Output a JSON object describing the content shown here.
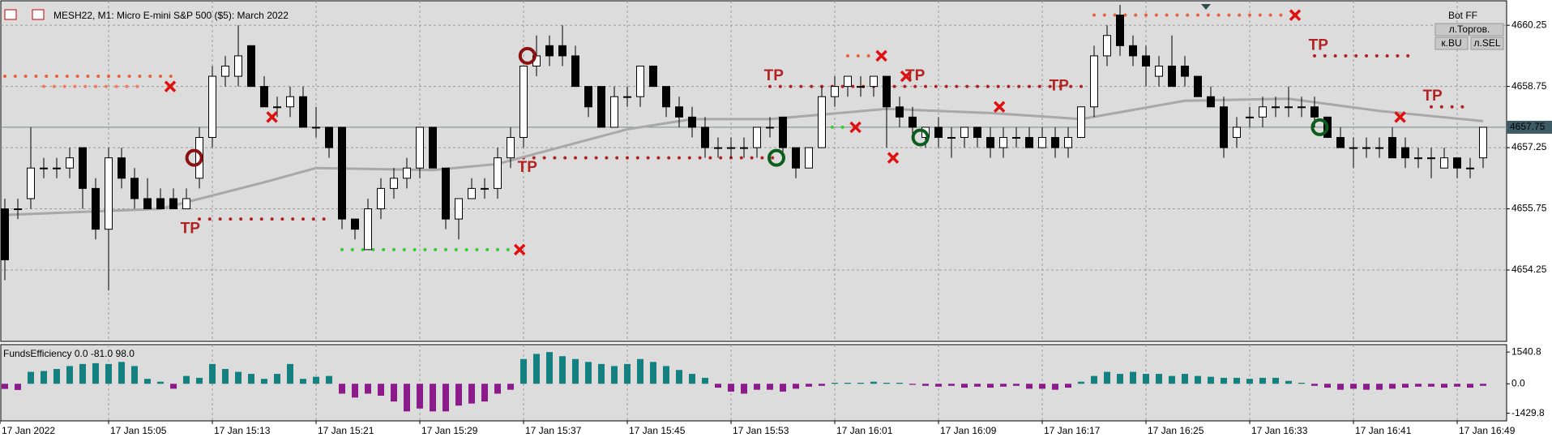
{
  "header": {
    "symbol": "MESH22, M1:  Micro E-mini S&P 500 ($5): March 2022",
    "bot": "Bot FF",
    "buttons": [
      "л.Торгов.",
      "к.BU",
      "л.SEL"
    ]
  },
  "chart_data": [
    {
      "type": "candlestick",
      "categories": [
        "17 Jan 2022",
        null,
        null,
        null,
        null,
        null,
        null,
        null,
        "17 Jan 15:05",
        null,
        null,
        null,
        null,
        null,
        null,
        null,
        "17 Jan 15:13",
        null,
        null,
        null,
        null,
        null,
        null,
        null,
        "17 Jan 15:21",
        null,
        null,
        null,
        null,
        null,
        null,
        null,
        "17 Jan 15:29",
        null,
        null,
        null,
        null,
        null,
        null,
        null,
        "17 Jan 15:37",
        null,
        null,
        null,
        null,
        null,
        null,
        null,
        "17 Jan 15:45",
        null,
        null,
        null,
        null,
        null,
        null,
        null,
        "17 Jan 15:53",
        null,
        null,
        null,
        null,
        null,
        null,
        null,
        "17 Jan 16:01",
        null,
        null,
        null,
        null,
        null,
        null,
        null,
        "17 Jan 16:09",
        null,
        null,
        null,
        null,
        null,
        null,
        null,
        "17 Jan 16:17",
        null,
        null,
        null,
        null,
        null,
        null,
        null,
        "17 Jan 16:25",
        null,
        null,
        null,
        null,
        null,
        null,
        null,
        "17 Jan 16:33",
        null,
        null,
        null,
        null,
        null,
        null,
        null,
        "17 Jan 16:41",
        null,
        null,
        null,
        null,
        null,
        null,
        null,
        "17 Jan 16:49",
        null,
        null
      ],
      "ohlc": [
        [
          4655.75,
          4656.0,
          4654.0,
          4654.5
        ],
        [
          4655.75,
          4656.0,
          4655.5,
          4655.75
        ],
        [
          4656.0,
          4657.75,
          4655.75,
          4656.75
        ],
        [
          4656.75,
          4657.0,
          4656.5,
          4656.75
        ],
        [
          4656.75,
          4657.0,
          4656.5,
          4656.75
        ],
        [
          4656.75,
          4657.25,
          4656.5,
          4657.0
        ],
        [
          4657.25,
          4657.25,
          4655.75,
          4656.25
        ],
        [
          4656.25,
          4656.5,
          4655.0,
          4655.25
        ],
        [
          4655.25,
          4657.25,
          4653.75,
          4657.0
        ],
        [
          4657.0,
          4657.25,
          4656.25,
          4656.5
        ],
        [
          4656.5,
          4656.75,
          4655.75,
          4656.0
        ],
        [
          4656.0,
          4656.5,
          4655.75,
          4655.75
        ],
        [
          4656.0,
          4656.25,
          4655.75,
          4655.75
        ],
        [
          4656.0,
          4656.25,
          4655.75,
          4655.75
        ],
        [
          4655.75,
          4656.25,
          4655.75,
          4656.0
        ],
        [
          4656.5,
          4657.75,
          4656.25,
          4657.5
        ],
        [
          4657.5,
          4659.25,
          4657.25,
          4659.0
        ],
        [
          4659.0,
          4659.5,
          4658.75,
          4659.25
        ],
        [
          4659.0,
          4660.25,
          4658.75,
          4659.5
        ],
        [
          4659.75,
          4659.75,
          4658.75,
          4658.75
        ],
        [
          4658.75,
          4659.0,
          4658.25,
          4658.25
        ],
        [
          4658.25,
          4658.5,
          4658.0,
          4658.25
        ],
        [
          4658.25,
          4658.75,
          4658.0,
          4658.5
        ],
        [
          4658.5,
          4658.75,
          4657.75,
          4657.75
        ],
        [
          4657.75,
          4658.25,
          4657.5,
          4657.75
        ],
        [
          4657.75,
          4657.75,
          4657.0,
          4657.25
        ],
        [
          4657.75,
          4657.75,
          4655.25,
          4655.5
        ],
        [
          4655.5,
          4655.5,
          4655.0,
          4655.25
        ],
        [
          4654.75,
          4656.0,
          4654.75,
          4655.75
        ],
        [
          4655.75,
          4656.5,
          4655.5,
          4656.25
        ],
        [
          4656.25,
          4656.75,
          4656.0,
          4656.5
        ],
        [
          4656.5,
          4657.0,
          4656.25,
          4656.75
        ],
        [
          4656.75,
          4657.75,
          4656.5,
          4657.75
        ],
        [
          4657.75,
          4657.75,
          4656.75,
          4656.75
        ],
        [
          4656.75,
          4656.75,
          4655.25,
          4655.5
        ],
        [
          4655.5,
          4656.0,
          4655.0,
          4656.0
        ],
        [
          4656.0,
          4656.5,
          4656.0,
          4656.25
        ],
        [
          4656.25,
          4656.5,
          4656.0,
          4656.25
        ],
        [
          4656.25,
          4657.25,
          4656.0,
          4657.0
        ],
        [
          4657.0,
          4657.75,
          4656.75,
          4657.5
        ],
        [
          4657.5,
          4659.25,
          4657.25,
          4659.25
        ],
        [
          4659.25,
          4660.0,
          4659.0,
          4659.5
        ],
        [
          4659.75,
          4660.0,
          4659.25,
          4659.5
        ],
        [
          4659.75,
          4660.25,
          4659.25,
          4659.5
        ],
        [
          4659.5,
          4659.75,
          4658.75,
          4658.75
        ],
        [
          4658.75,
          4658.75,
          4658.0,
          4658.25
        ],
        [
          4658.75,
          4658.75,
          4657.75,
          4657.75
        ],
        [
          4657.75,
          4658.75,
          4657.75,
          4658.5
        ],
        [
          4658.5,
          4658.75,
          4658.25,
          4658.5
        ],
        [
          4658.5,
          4659.25,
          4658.25,
          4659.25
        ],
        [
          4659.25,
          4659.25,
          4658.75,
          4658.75
        ],
        [
          4658.75,
          4658.75,
          4658.0,
          4658.25
        ],
        [
          4658.25,
          4658.5,
          4657.75,
          4658.0
        ],
        [
          4658.0,
          4658.25,
          4657.5,
          4657.75
        ],
        [
          4657.75,
          4658.0,
          4657.0,
          4657.25
        ],
        [
          4657.25,
          4657.5,
          4657.0,
          4657.25
        ],
        [
          4657.25,
          4657.5,
          4657.0,
          4657.25
        ],
        [
          4657.25,
          4657.5,
          4657.0,
          4657.25
        ],
        [
          4657.25,
          4657.75,
          4657.0,
          4657.75
        ],
        [
          4657.75,
          4658.0,
          4657.5,
          4657.75
        ],
        [
          4658.0,
          4658.0,
          4657.0,
          4657.25
        ],
        [
          4657.25,
          4657.25,
          4656.5,
          4656.75
        ],
        [
          4656.75,
          4657.25,
          4656.75,
          4657.25
        ],
        [
          4657.25,
          4658.75,
          4657.25,
          4658.5
        ],
        [
          4658.5,
          4659.0,
          4658.25,
          4658.75
        ],
        [
          4658.75,
          4659.0,
          4658.5,
          4659.0
        ],
        [
          4658.75,
          4659.0,
          4658.5,
          4658.75
        ],
        [
          4658.75,
          4659.0,
          4658.5,
          4659.0
        ],
        [
          4659.0,
          4659.0,
          4657.25,
          4658.25
        ],
        [
          4658.25,
          4658.5,
          4657.75,
          4658.0
        ],
        [
          4658.0,
          4658.25,
          4657.5,
          4657.75
        ],
        [
          4657.5,
          4657.75,
          4657.25,
          4657.75
        ],
        [
          4657.75,
          4658.0,
          4657.25,
          4657.5
        ],
        [
          4657.5,
          4657.75,
          4657.0,
          4657.5
        ],
        [
          4657.5,
          4657.75,
          4657.25,
          4657.75
        ],
        [
          4657.75,
          4657.75,
          4657.25,
          4657.5
        ],
        [
          4657.5,
          4657.75,
          4657.0,
          4657.25
        ],
        [
          4657.25,
          4657.75,
          4657.0,
          4657.5
        ],
        [
          4657.5,
          4657.75,
          4657.25,
          4657.5
        ],
        [
          4657.5,
          4657.75,
          4657.25,
          4657.25
        ],
        [
          4657.25,
          4657.75,
          4657.25,
          4657.5
        ],
        [
          4657.5,
          4657.75,
          4657.0,
          4657.25
        ],
        [
          4657.25,
          4657.75,
          4657.0,
          4657.5
        ],
        [
          4657.5,
          4658.25,
          4657.5,
          4658.25
        ],
        [
          4658.25,
          4659.75,
          4658.0,
          4659.5
        ],
        [
          4659.5,
          4660.25,
          4659.25,
          4660.0
        ],
        [
          4660.5,
          4660.75,
          4659.5,
          4659.75
        ],
        [
          4659.75,
          4660.0,
          4659.25,
          4659.5
        ],
        [
          4659.5,
          4659.75,
          4658.75,
          4659.25
        ],
        [
          4659.0,
          4659.5,
          4658.75,
          4659.25
        ],
        [
          4659.25,
          4660.0,
          4658.75,
          4658.75
        ],
        [
          4659.25,
          4659.5,
          4658.75,
          4659.0
        ],
        [
          4659.0,
          4659.0,
          4658.5,
          4658.5
        ],
        [
          4658.5,
          4658.75,
          4658.25,
          4658.25
        ],
        [
          4658.25,
          4658.5,
          4657.0,
          4657.25
        ],
        [
          4657.5,
          4658.0,
          4657.25,
          4657.75
        ],
        [
          4658.0,
          4658.25,
          4657.75,
          4658.0
        ],
        [
          4658.0,
          4658.5,
          4657.75,
          4658.25
        ],
        [
          4658.25,
          4658.5,
          4658.0,
          4658.25
        ],
        [
          4658.25,
          4658.75,
          4658.0,
          4658.25
        ],
        [
          4658.25,
          4658.5,
          4658.0,
          4658.25
        ],
        [
          4658.25,
          4658.5,
          4657.75,
          4658.0
        ],
        [
          4658.0,
          4658.0,
          4657.5,
          4657.5
        ],
        [
          4657.5,
          4657.75,
          4657.25,
          4657.25
        ],
        [
          4657.25,
          4657.5,
          4656.75,
          4657.25
        ],
        [
          4657.25,
          4657.5,
          4657.0,
          4657.25
        ],
        [
          4657.25,
          4657.5,
          4657.0,
          4657.25
        ],
        [
          4657.5,
          4657.75,
          4657.0,
          4657.0
        ],
        [
          4657.25,
          4657.5,
          4656.75,
          4657.0
        ],
        [
          4657.0,
          4657.25,
          4656.75,
          4657.0
        ],
        [
          4657.0,
          4657.25,
          4656.5,
          4657.0
        ],
        [
          4656.75,
          4657.25,
          4656.75,
          4657.0
        ],
        [
          4657.0,
          4657.0,
          4656.5,
          4656.75
        ],
        [
          4656.75,
          4657.0,
          4656.5,
          4656.75
        ],
        [
          4657.0,
          4657.75,
          4656.75,
          4657.75
        ]
      ],
      "ylim": [
        4652.5,
        4660.85
      ],
      "yticks": [
        4660.25,
        4658.75,
        4657.25,
        4655.75,
        4654.25
      ],
      "grid": true,
      "last_price": 4657.75,
      "ma": {
        "color": "#a8a8a8",
        "x": [
          0,
          12,
          20,
          24,
          33,
          38,
          48,
          53,
          59,
          68,
          76,
          83,
          91,
          99,
          106,
          114
        ],
        "values": [
          4655.6,
          4655.75,
          4656.4,
          4656.75,
          4656.7,
          4656.85,
          4657.7,
          4657.95,
          4657.95,
          4658.2,
          4658.1,
          4657.95,
          4658.4,
          4658.45,
          4658.15,
          4657.9
        ]
      },
      "levels": [
        {
          "from": 0,
          "to": 13,
          "value": 4659.0,
          "color": "#e8603c"
        },
        {
          "from": 3,
          "to": 11,
          "value": 4658.75,
          "color": "#f47a5c"
        },
        {
          "from": 15,
          "to": 25,
          "value": 4655.5,
          "color": "#b22222"
        },
        {
          "from": 26,
          "to": 39,
          "value": 4654.75,
          "color": "#33cc33"
        },
        {
          "from": 40,
          "to": 60,
          "value": 4657.0,
          "color": "#b22222"
        },
        {
          "from": 59,
          "to": 83,
          "value": 4658.75,
          "color": "#b22222"
        },
        {
          "from": 84,
          "to": 99,
          "value": 4660.5,
          "color": "#e8603c"
        },
        {
          "from": 101,
          "to": 109,
          "value": 4659.5,
          "color": "#b22222"
        },
        {
          "from": 110,
          "to": 113,
          "value": 4658.25,
          "color": "#b22222"
        },
        {
          "from": 65,
          "to": 67,
          "value": 4659.5,
          "color": "#e8603c"
        },
        {
          "from": 63,
          "to": 65,
          "value": 4657.75,
          "color": "#33cc33"
        }
      ],
      "crosses": [
        {
          "x": 12.75,
          "y": 4658.75
        },
        {
          "x": 20.6,
          "y": 4658.0
        },
        {
          "x": 39.7,
          "y": 4654.75
        },
        {
          "x": 67.6,
          "y": 4659.5
        },
        {
          "x": 65.6,
          "y": 4657.75
        },
        {
          "x": 68.5,
          "y": 4657.0
        },
        {
          "x": 69.5,
          "y": 4659.0
        },
        {
          "x": 76.7,
          "y": 4658.25
        },
        {
          "x": 99.5,
          "y": 4660.5
        },
        {
          "x": 107.6,
          "y": 4658.0
        }
      ],
      "entries": [
        {
          "x": 14.6,
          "y": 4657.0,
          "color": "#8b1010"
        },
        {
          "x": 40.3,
          "y": 4659.5,
          "color": "#8b1010"
        },
        {
          "x": 59.5,
          "y": 4657.0,
          "color": "#0b5d1e"
        },
        {
          "x": 70.6,
          "y": 4657.5,
          "color": "#0b5d1e"
        },
        {
          "x": 101.4,
          "y": 4657.75,
          "color": "#0b5d1e"
        }
      ],
      "tp": [
        {
          "text": "TP",
          "x": 14.3,
          "y": 4655.25
        },
        {
          "text": "TP",
          "x": 40.3,
          "y": 4656.75
        },
        {
          "text": "TP",
          "x": 59.3,
          "y": 4659.0
        },
        {
          "text": "TP",
          "x": 70.2,
          "y": 4659.0
        },
        {
          "text": "TP",
          "x": 81.3,
          "y": 4658.75
        },
        {
          "text": "TP",
          "x": 101.3,
          "y": 4659.75
        },
        {
          "text": "TP",
          "x": 110.1,
          "y": 4658.5
        }
      ]
    },
    {
      "type": "bar",
      "title": "FundsEfficiency 0.0 -81.0 98.0",
      "color_positive": "#14807f",
      "color_negative": "#8b1a8b",
      "values": [
        -250,
        -300,
        580,
        620,
        720,
        860,
        960,
        1000,
        960,
        1060,
        860,
        240,
        100,
        -240,
        380,
        290,
        960,
        720,
        580,
        480,
        240,
        480,
        960,
        240,
        340,
        380,
        -480,
        -670,
        -480,
        -580,
        -860,
        -1340,
        -1200,
        -1340,
        -1340,
        -1060,
        -960,
        -860,
        -480,
        -290,
        1200,
        1450,
        1540,
        1340,
        1200,
        1060,
        960,
        860,
        960,
        1200,
        1060,
        860,
        670,
        480,
        290,
        -190,
        -380,
        -480,
        -290,
        -290,
        -380,
        -240,
        -140,
        -100,
        50,
        50,
        50,
        100,
        50,
        50,
        -50,
        -100,
        -140,
        -100,
        -190,
        -140,
        -190,
        -140,
        -100,
        -240,
        -240,
        -290,
        -190,
        100,
        380,
        580,
        480,
        580,
        480,
        480,
        380,
        480,
        380,
        340,
        290,
        290,
        240,
        290,
        290,
        140,
        50,
        -100,
        -190,
        -290,
        -240,
        -290,
        -290,
        -240,
        -190,
        -140,
        -140,
        -190,
        -140,
        -190,
        -100
      ],
      "ylim": [
        -1800,
        1900
      ],
      "yticks": [
        1540.8,
        {
          "value": 0,
          "label": "0.0"
        },
        -1429.8
      ]
    }
  ]
}
